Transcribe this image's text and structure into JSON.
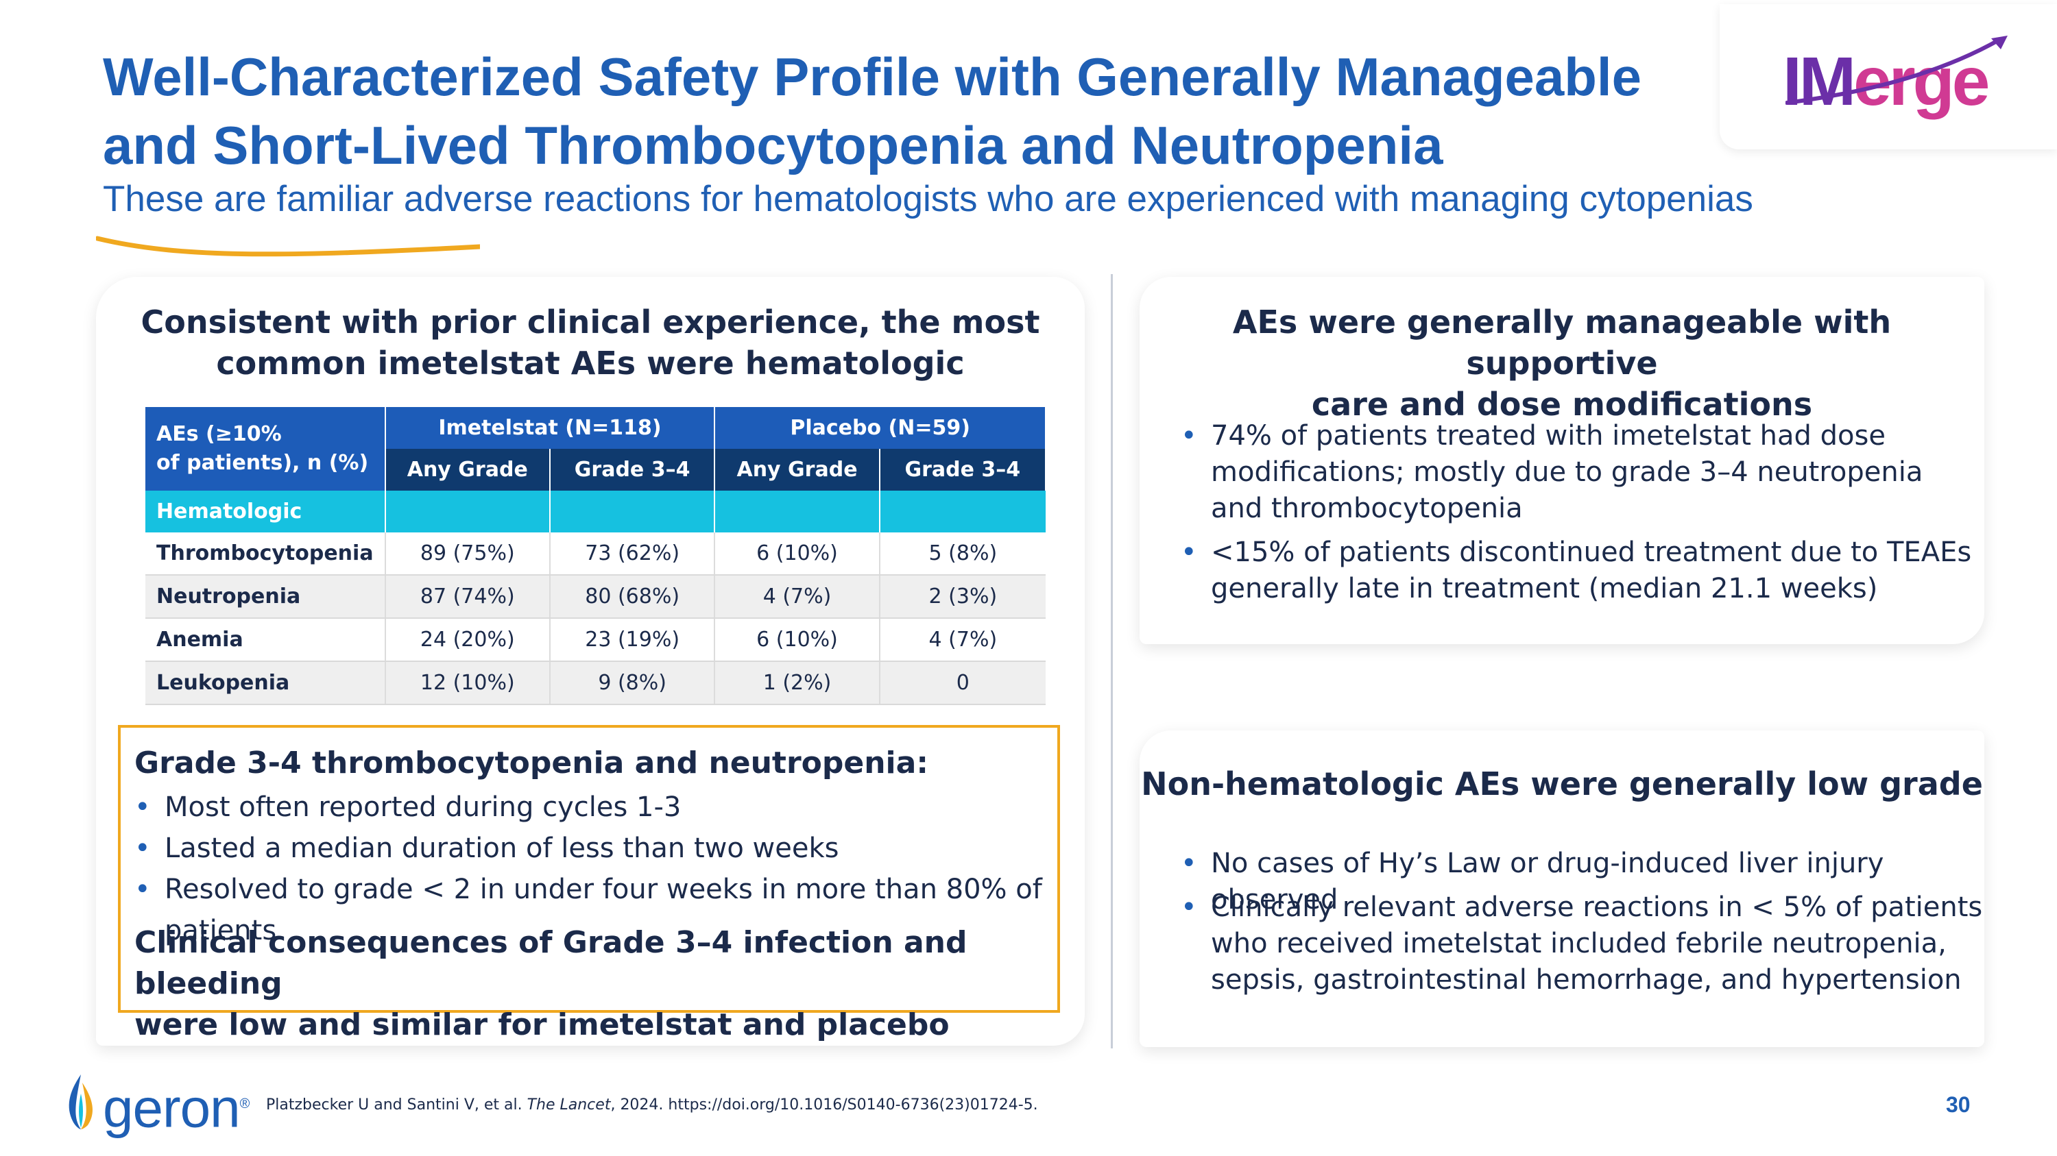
{
  "header": {
    "title_line1": "Well-Characterized Safety Profile with Generally Manageable",
    "title_line2": "and Short-Lived Thrombocytopenia and Neutropenia",
    "subtitle": "These are familiar adverse reactions for hematologists who are experienced with managing cytopenias"
  },
  "logo": {
    "part1": "IM",
    "part2": "erge"
  },
  "left_card": {
    "heading_line1": "Consistent with prior clinical experience, the most",
    "heading_line2": "common imetelstat AEs were hematologic",
    "table": {
      "corner_line1": "AEs (≥10%",
      "corner_line2": "of patients), n (%)",
      "group1": "Imetelstat (N=118)",
      "group2": "Placebo (N=59)",
      "sub_headers": [
        "Any Grade",
        "Grade 3–4",
        "Any Grade",
        "Grade 3–4"
      ],
      "section": "Hematologic",
      "rows": [
        {
          "name": "Thrombocytopenia",
          "values": [
            "89 (75%)",
            "73 (62%)",
            "6 (10%)",
            "5 (8%)"
          ]
        },
        {
          "name": "Neutropenia",
          "values": [
            "87 (74%)",
            "80 (68%)",
            "4 (7%)",
            "2 (3%)"
          ]
        },
        {
          "name": "Anemia",
          "values": [
            "24 (20%)",
            "23 (19%)",
            "6 (10%)",
            "4 (7%)"
          ]
        },
        {
          "name": "Leukopenia",
          "values": [
            "12 (10%)",
            "9 (8%)",
            "1 (2%)",
            "0"
          ]
        }
      ]
    },
    "callout": {
      "heading": "Grade 3-4 thrombocytopenia and neutropenia:",
      "bullets": [
        "Most often reported during cycles 1-3",
        "Lasted a median duration of less than two weeks",
        "Resolved to grade < 2 in under four weeks in more than 80% of patients"
      ],
      "conclusion_line1": "Clinical consequences of Grade 3–4 infection and bleeding",
      "conclusion_line2": "were low and similar for imetelstat and placebo"
    }
  },
  "right_top": {
    "heading_line1": "AEs were generally manageable with supportive",
    "heading_line2": "care and dose modifications",
    "bullets": [
      [
        "74% of patients treated with imetelstat had dose",
        "modifications; mostly due to grade 3–4 neutropenia",
        "and thrombocytopenia"
      ],
      [
        "<15% of patients discontinued treatment due to TEAEs",
        "generally late in treatment (median 21.1 weeks)"
      ]
    ]
  },
  "right_bottom": {
    "heading": "Non-hematologic AEs were generally low grade",
    "bullets": [
      [
        "No cases of Hy’s Law or drug-induced liver injury observed"
      ],
      [
        "Clinically relevant adverse reactions in < 5% of patients",
        "who received imetelstat included febrile neutropenia,",
        "sepsis, gastrointestinal hemorrhage, and hypertension"
      ]
    ]
  },
  "footer": {
    "brand": "geron",
    "brand_mark": "®",
    "reference_pre": "Platzbecker U and Santini V, et al. ",
    "reference_journal": "The Lancet",
    "reference_post": ", 2024. https://doi.org/10.1016/S0140-6736(23)01724-5.",
    "page_number": "30"
  },
  "colors": {
    "primary_blue": "#1f5fb4",
    "dark_navy": "#0f3a6e",
    "cyan": "#16c1e0",
    "orange": "#f0a81f",
    "logo_purple": "#6b2fa8",
    "logo_pink": "#d03a93"
  }
}
